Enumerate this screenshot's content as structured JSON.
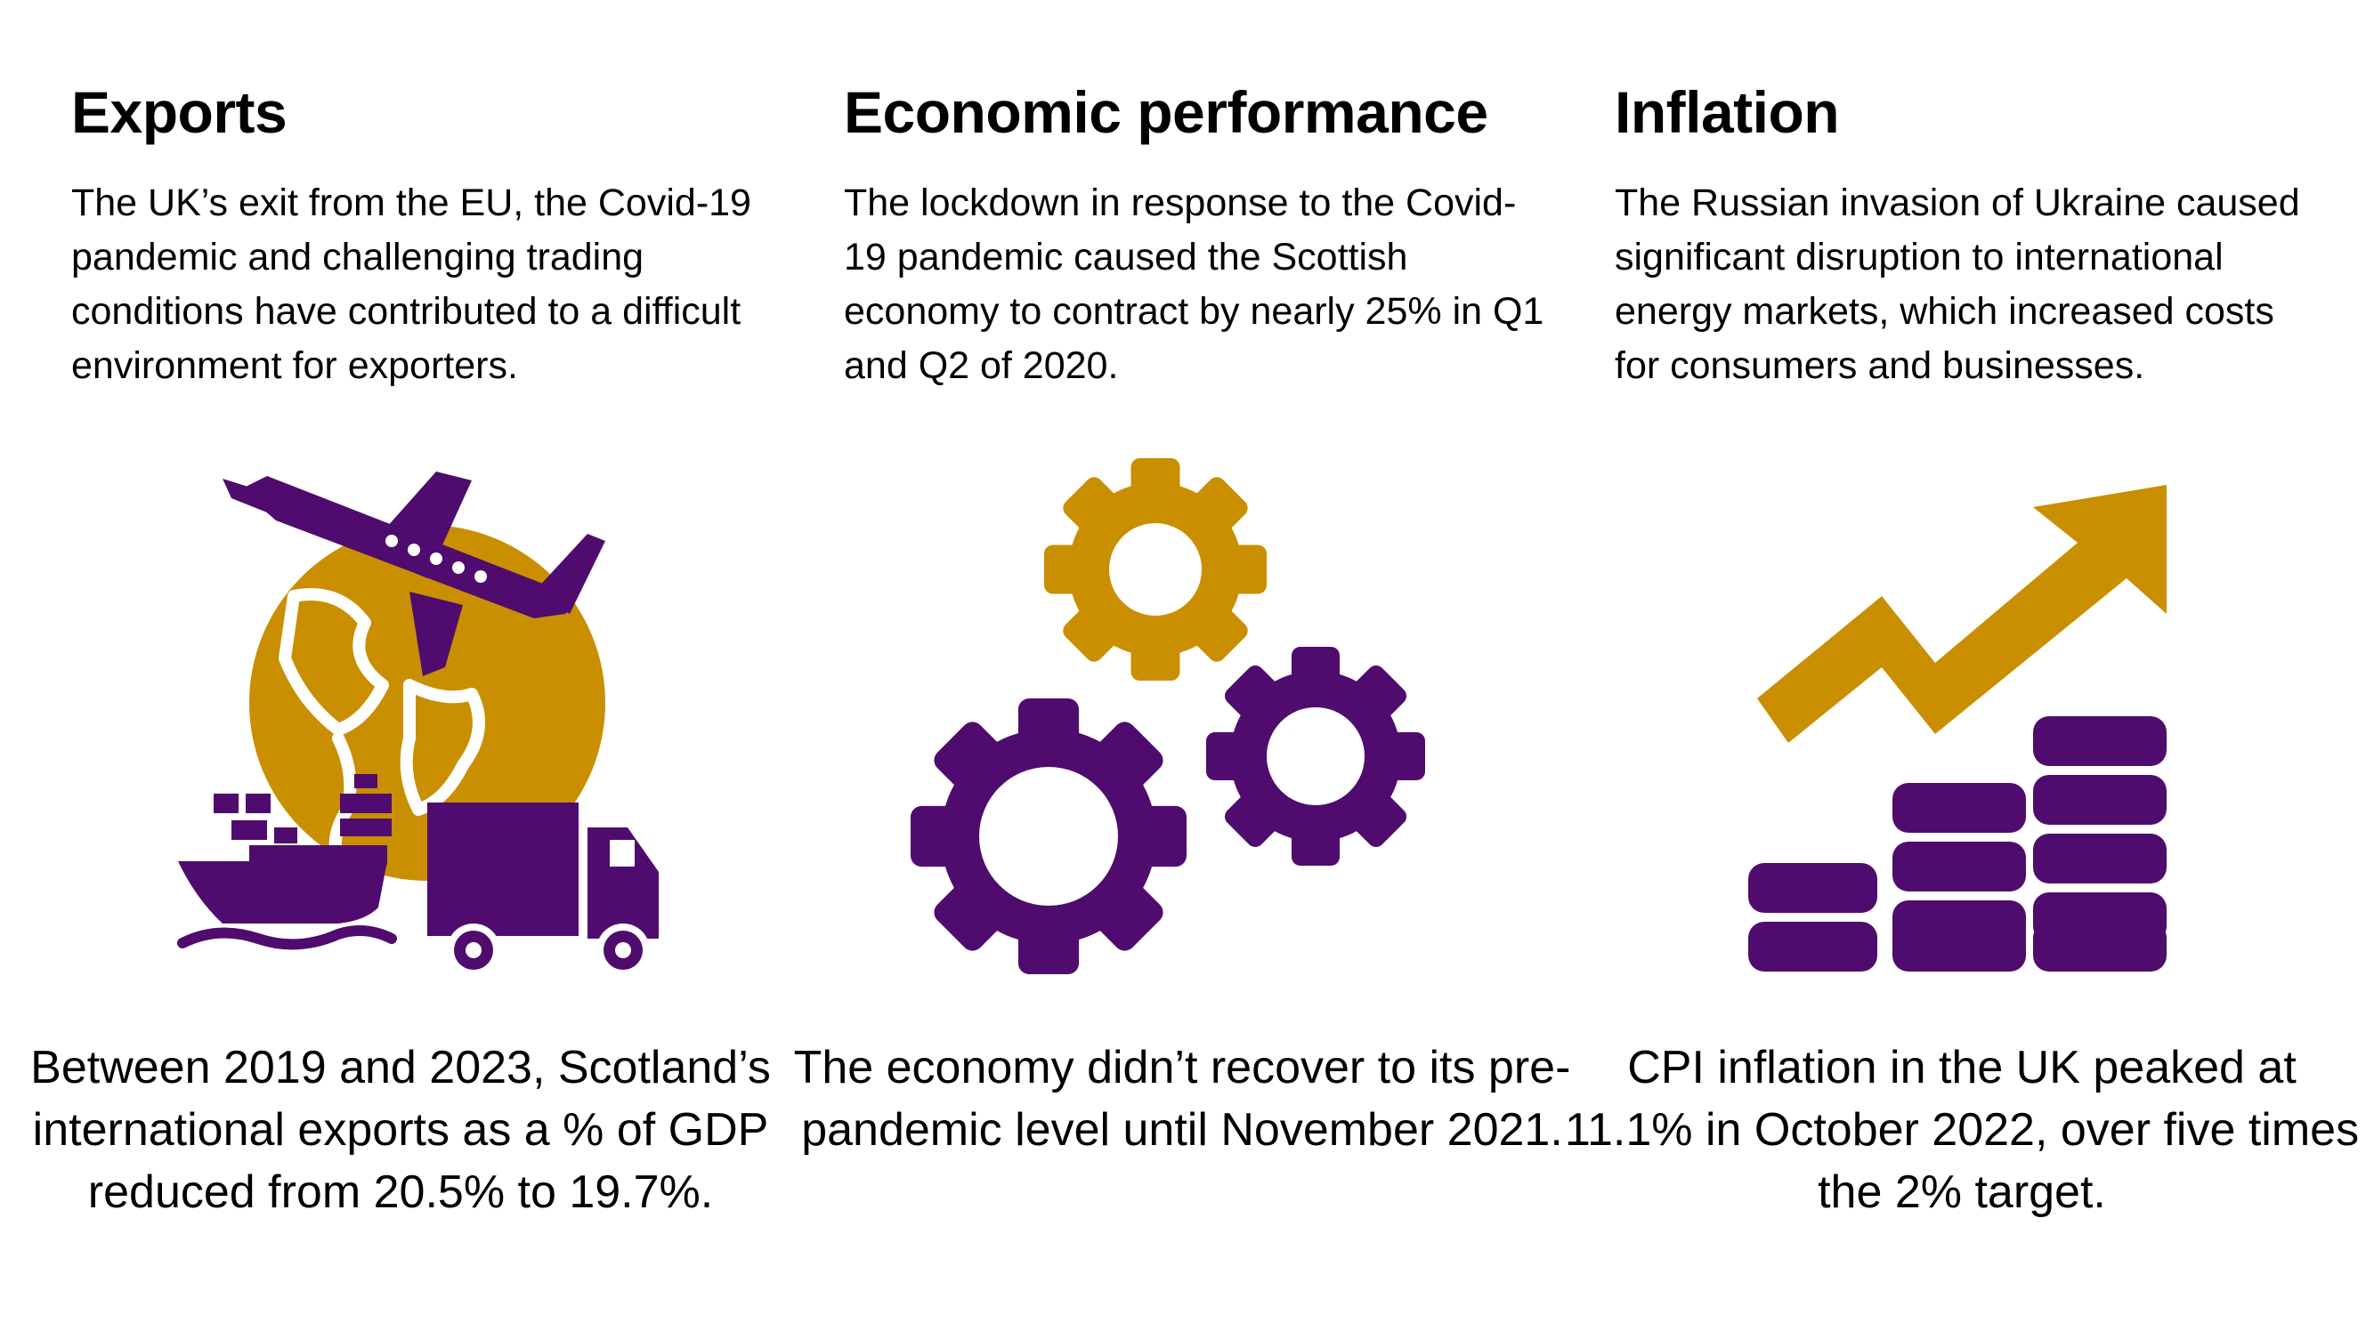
{
  "colors": {
    "gold": "#C98F00",
    "purple": "#4F0C6E",
    "text": "#000000",
    "background": "#FFFFFF"
  },
  "sections": [
    {
      "heading": "Exports",
      "intro": "The UK’s exit from the EU, the Covid-19 pandemic and challenging trading conditions have contributed to a difficult environment for exporters.",
      "icon": "globe-plane-ship-truck-icon",
      "stat": "Between 2019 and 2023, Scotland’s international exports as a % of GDP reduced from 20.5% to 19.7%."
    },
    {
      "heading": "Economic performance",
      "intro": "The lockdown in response to the Covid-19 pandemic caused the Scottish economy to contract by nearly 25% in Q1 and Q2 of 2020.",
      "icon": "gears-icon",
      "stat": "The economy didn’t recover to its pre-pandemic level until November 2021."
    },
    {
      "heading": "Inflation",
      "intro": "The Russian invasion of Ukraine caused significant disruption to international energy markets, which increased costs for consumers and businesses.",
      "icon": "rising-arrow-coins-icon",
      "stat": "CPI inflation in the UK peaked at 11.1% in October 2022, over five times the 2% target."
    }
  ]
}
